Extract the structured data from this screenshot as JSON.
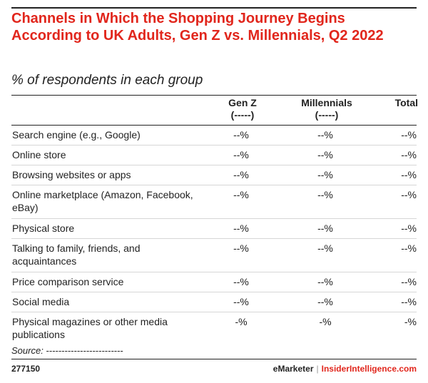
{
  "chart_data": {
    "type": "table",
    "title": "Channels in Which the Shopping Journey Begins According to UK Adults, Gen Z vs. Millennials, Q2 2022",
    "subtitle": "% of respondents in each group",
    "columns": [
      {
        "name": "Gen Z",
        "sub": "(-----)"
      },
      {
        "name": "Millennials",
        "sub": "(-----)"
      },
      {
        "name": "Total",
        "sub": ""
      }
    ],
    "rows": [
      {
        "label": "Search engine (e.g., Google)",
        "values": [
          "--%",
          "--%",
          "--%"
        ]
      },
      {
        "label": "Online store",
        "values": [
          "--%",
          "--%",
          "--%"
        ]
      },
      {
        "label": "Browsing websites or apps",
        "values": [
          "--%",
          "--%",
          "--%"
        ]
      },
      {
        "label": "Online marketplace (Amazon, Facebook, eBay)",
        "values": [
          "--%",
          "--%",
          "--%"
        ]
      },
      {
        "label": "Physical store",
        "values": [
          "--%",
          "--%",
          "--%"
        ]
      },
      {
        "label": "Talking to family, friends, and acquaintances",
        "values": [
          "--%",
          "--%",
          "--%"
        ]
      },
      {
        "label": "Price comparison service",
        "values": [
          "--%",
          "--%",
          "--%"
        ]
      },
      {
        "label": "Social media",
        "values": [
          "--%",
          "--%",
          "--%"
        ]
      },
      {
        "label": "Physical magazines or other media publications",
        "values": [
          "-%",
          "-%",
          "-%"
        ]
      }
    ],
    "source": "Source: -------------------------"
  },
  "footer": {
    "chart_id": "277150",
    "brand_primary": "eMarketer",
    "brand_separator": "|",
    "brand_secondary": "InsiderIntelligence.com"
  },
  "colors": {
    "title": "#e1261c",
    "text": "#222222",
    "row_rule": "#d6d6d6"
  }
}
